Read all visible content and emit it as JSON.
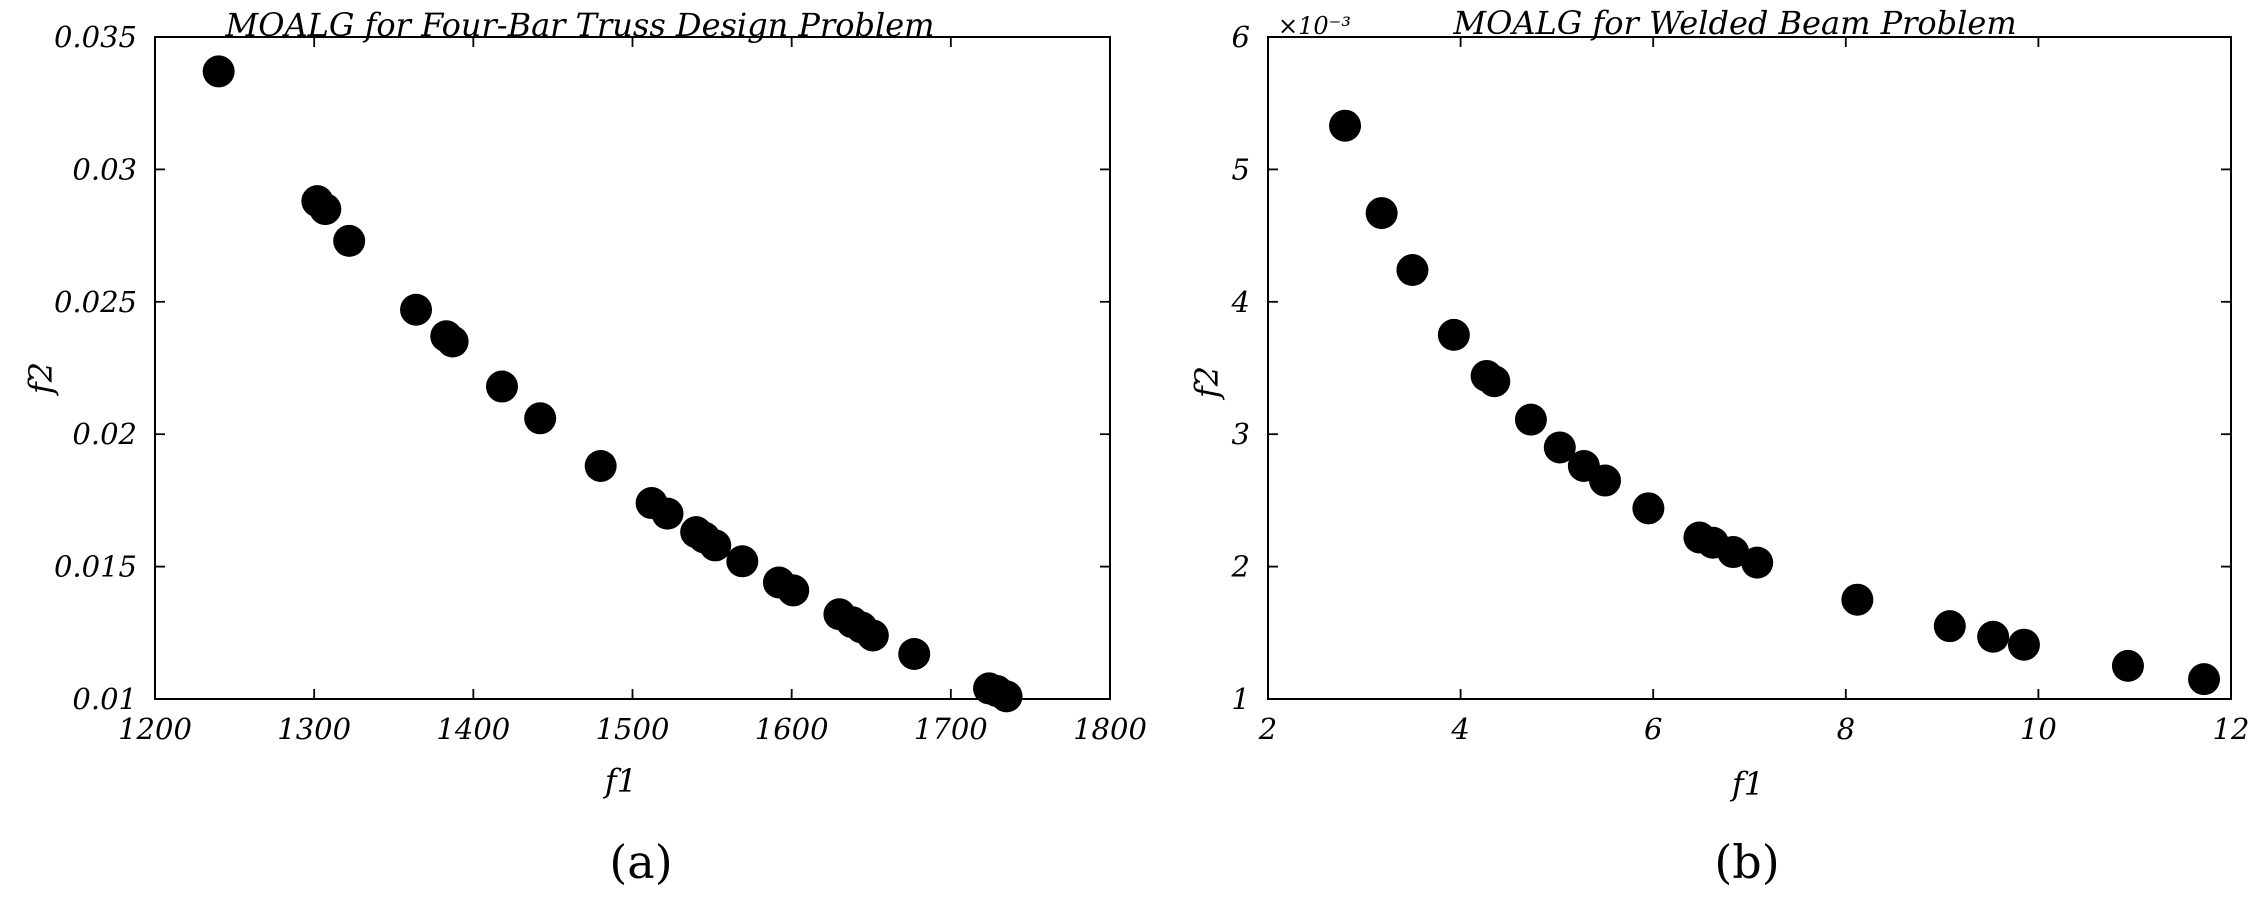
{
  "chart_data": [
    {
      "type": "scatter",
      "title": "MOALG for Four-Bar Truss Design Problem",
      "xlabel": "f1",
      "ylabel": "f2",
      "caption": "(a)",
      "xlim": [
        1200,
        1800
      ],
      "ylim": [
        0.01,
        0.035
      ],
      "xticks": [
        1200,
        1300,
        1400,
        1500,
        1600,
        1700,
        1800
      ],
      "yticks": [
        0.01,
        0.015,
        0.02,
        0.025,
        0.03,
        0.035
      ],
      "xtick_labels": [
        "1200",
        "1300",
        "1400",
        "1500",
        "1600",
        "1700",
        "1800"
      ],
      "ytick_labels": [
        "0.01",
        "0.015",
        "0.02",
        "0.025",
        "0.03",
        "0.035"
      ],
      "exponent_label": "",
      "grid": false,
      "marker_color": "#000000",
      "points": [
        {
          "x": 1240,
          "y": 0.0337
        },
        {
          "x": 1302,
          "y": 0.0288
        },
        {
          "x": 1307,
          "y": 0.0285
        },
        {
          "x": 1322,
          "y": 0.0273
        },
        {
          "x": 1364,
          "y": 0.0247
        },
        {
          "x": 1383,
          "y": 0.0237
        },
        {
          "x": 1387,
          "y": 0.0235
        },
        {
          "x": 1418,
          "y": 0.0218
        },
        {
          "x": 1442,
          "y": 0.0206
        },
        {
          "x": 1480,
          "y": 0.0188
        },
        {
          "x": 1512,
          "y": 0.0174
        },
        {
          "x": 1522,
          "y": 0.017
        },
        {
          "x": 1540,
          "y": 0.0163
        },
        {
          "x": 1545,
          "y": 0.0161
        },
        {
          "x": 1552,
          "y": 0.0158
        },
        {
          "x": 1569,
          "y": 0.0152
        },
        {
          "x": 1592,
          "y": 0.0144
        },
        {
          "x": 1601,
          "y": 0.0141
        },
        {
          "x": 1630,
          "y": 0.0132
        },
        {
          "x": 1638,
          "y": 0.0129
        },
        {
          "x": 1644,
          "y": 0.0127
        },
        {
          "x": 1651,
          "y": 0.0124
        },
        {
          "x": 1677,
          "y": 0.0117
        },
        {
          "x": 1724,
          "y": 0.0104
        },
        {
          "x": 1729,
          "y": 0.0103
        },
        {
          "x": 1735,
          "y": 0.0101
        }
      ]
    },
    {
      "type": "scatter",
      "title": "MOALG for Welded Beam Problem",
      "xlabel": "f1",
      "ylabel": "f2",
      "caption": "(b)",
      "xlim": [
        2,
        12
      ],
      "ylim": [
        0.001,
        0.006
      ],
      "xticks": [
        2,
        4,
        6,
        8,
        10,
        12
      ],
      "yticks": [
        0.001,
        0.002,
        0.003,
        0.004,
        0.005,
        0.006
      ],
      "xtick_labels": [
        "2",
        "4",
        "6",
        "8",
        "10",
        "12"
      ],
      "ytick_labels": [
        "1",
        "2",
        "3",
        "4",
        "5",
        "6"
      ],
      "exponent_label": "×10⁻³",
      "grid": false,
      "marker_color": "#000000",
      "points": [
        {
          "x": 2.8,
          "y": 0.00533
        },
        {
          "x": 3.18,
          "y": 0.00467
        },
        {
          "x": 3.5,
          "y": 0.00424
        },
        {
          "x": 3.93,
          "y": 0.00375
        },
        {
          "x": 4.27,
          "y": 0.00344
        },
        {
          "x": 4.35,
          "y": 0.0034
        },
        {
          "x": 4.73,
          "y": 0.00311
        },
        {
          "x": 5.03,
          "y": 0.0029
        },
        {
          "x": 5.28,
          "y": 0.00276
        },
        {
          "x": 5.5,
          "y": 0.00265
        },
        {
          "x": 5.95,
          "y": 0.00244
        },
        {
          "x": 6.48,
          "y": 0.00222
        },
        {
          "x": 6.62,
          "y": 0.00218
        },
        {
          "x": 6.83,
          "y": 0.00211
        },
        {
          "x": 7.08,
          "y": 0.00203
        },
        {
          "x": 8.12,
          "y": 0.00175
        },
        {
          "x": 9.08,
          "y": 0.00155
        },
        {
          "x": 9.53,
          "y": 0.00147
        },
        {
          "x": 9.85,
          "y": 0.00141
        },
        {
          "x": 10.93,
          "y": 0.00125
        },
        {
          "x": 11.72,
          "y": 0.00115
        }
      ]
    }
  ]
}
